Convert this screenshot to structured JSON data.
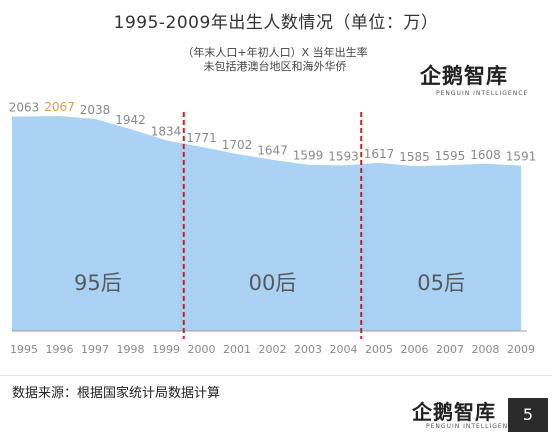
{
  "title": "1995-2009年出生人数情况（单位：万）",
  "notes": [
    "（年末人口+年初人口）X 当年出生率",
    "未包括港澳台地区和海外华侨"
  ],
  "logo_top": {
    "text": "企鹅智库",
    "sub": "PENGUIN INTELLIGENCE"
  },
  "logo_bottom": {
    "text": "企鹅智库",
    "sub": "PENGUIN INTELLIGENCE"
  },
  "footer": {
    "source": "数据来源：根据国家统计局数据计算",
    "page": "5"
  },
  "colors": {
    "area": "#a9d2f5",
    "label": "#8a8a8a",
    "highlight": "#e59a4a",
    "divider": "#cc1f1f",
    "axis": "#9a9a9a"
  },
  "chart_data": {
    "type": "area",
    "title": "1995-2009年出生人数情况（单位：万）",
    "x": [
      "1995",
      "1996",
      "1997",
      "1998",
      "1999",
      "2000",
      "2001",
      "2002",
      "2003",
      "2004",
      "2005",
      "2006",
      "2007",
      "2008",
      "2009"
    ],
    "values": [
      2063,
      2067,
      2038,
      1942,
      1834,
      1771,
      1702,
      1647,
      1599,
      1593,
      1617,
      1585,
      1595,
      1608,
      1591
    ],
    "highlight_index": 1,
    "ylim": [
      0,
      2100
    ],
    "grid": false,
    "dividers_after": [
      "1999",
      "2004"
    ],
    "segments": [
      "95后",
      "00后",
      "05后"
    ]
  }
}
